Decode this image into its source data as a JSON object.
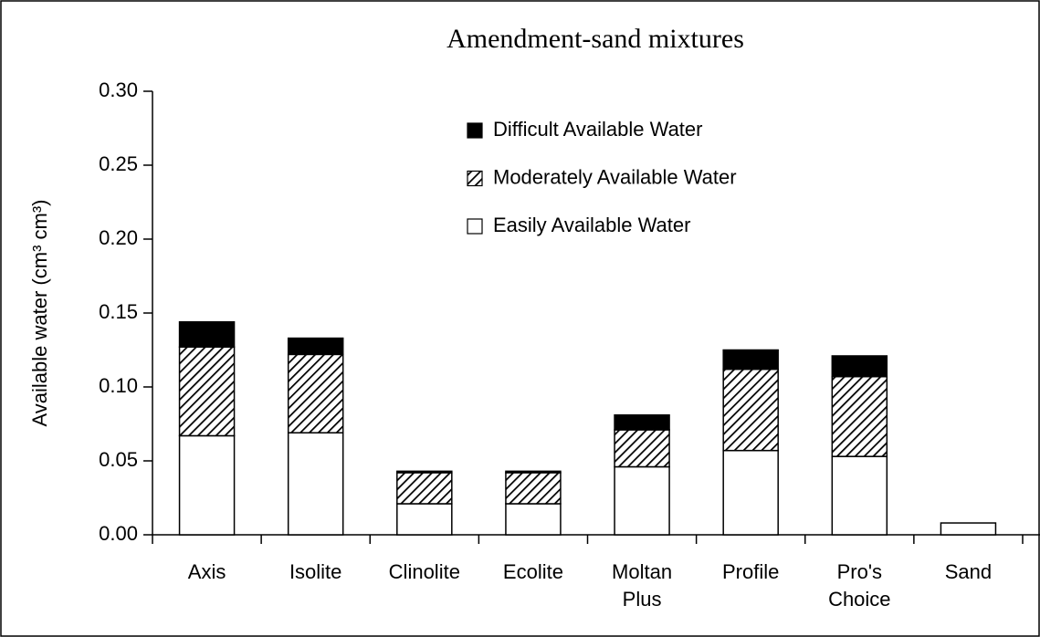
{
  "chart_data": {
    "type": "stacked-bar",
    "title": "Amendment-sand mixtures",
    "ylabel": "Available water (cm³ cm³)",
    "categories": [
      "Axis",
      "Isolite",
      "Clinolite",
      "Ecolite",
      "Moltan Plus",
      "Profile",
      "Pro's Choice",
      "Sand"
    ],
    "series": [
      {
        "name": "Easily Available Water",
        "color": "#ffffff",
        "values": [
          0.067,
          0.069,
          0.021,
          0.021,
          0.046,
          0.057,
          0.053,
          0.008
        ]
      },
      {
        "name": "Moderately Available Water",
        "color": "#808080",
        "pattern": "hatch",
        "values": [
          0.06,
          0.053,
          0.021,
          0.021,
          0.025,
          0.055,
          0.054,
          0
        ]
      },
      {
        "name": "Difficult Available Water",
        "color": "#000000",
        "values": [
          0.017,
          0.011,
          0.001,
          0.001,
          0.01,
          0.013,
          0.014,
          0
        ]
      }
    ],
    "ylim": [
      0,
      0.3
    ],
    "yticks": [
      {
        "value": 0,
        "label": "0.00"
      },
      {
        "value": 0.05,
        "label": "0.05"
      },
      {
        "value": 0.1,
        "label": "0.10"
      },
      {
        "value": 0.15,
        "label": "0.15"
      },
      {
        "value": 0.2,
        "label": "0.20"
      },
      {
        "value": 0.25,
        "label": "0.25"
      },
      {
        "value": 0.3,
        "label": "0.30"
      }
    ],
    "legend": "top-right"
  }
}
